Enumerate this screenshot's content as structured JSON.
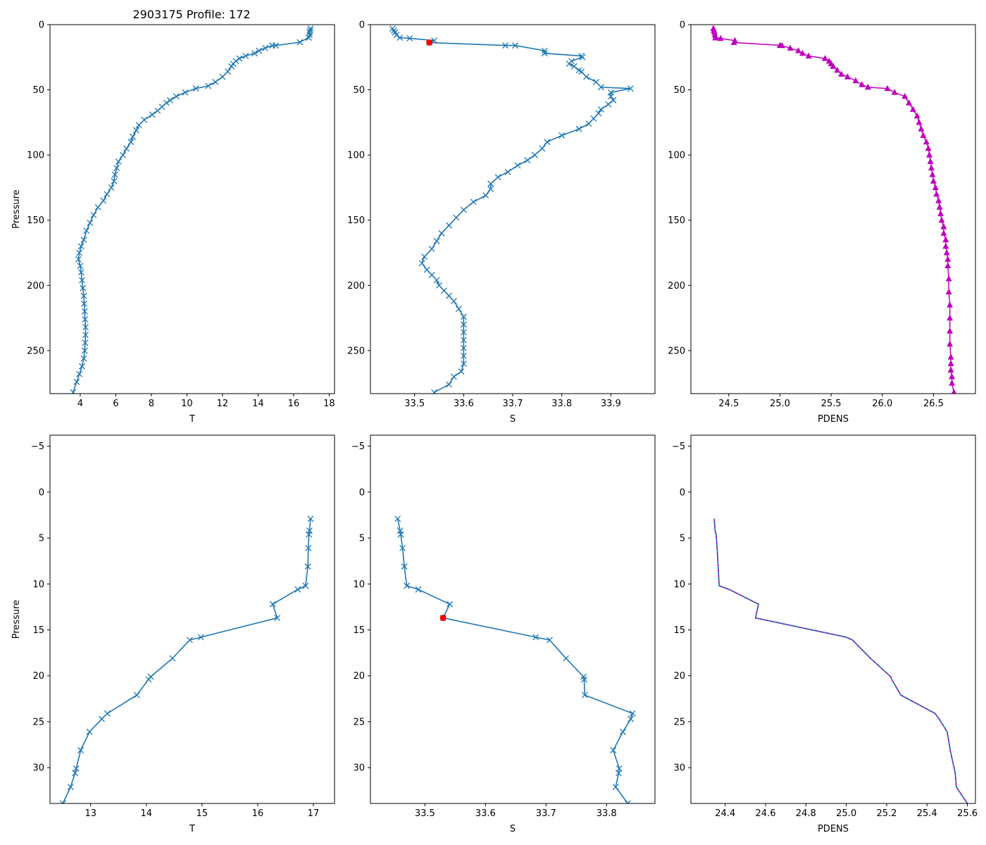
{
  "title": "2903175 Profile: 172",
  "colors": {
    "line": "#1f77b4",
    "density": "#bf00bf",
    "flag": "#ff0000"
  },
  "chart_data": [
    {
      "type": "line",
      "panel": "top-left",
      "xlabel": "T",
      "ylabel": "Pressure",
      "xlim": [
        2.3,
        18.3
      ],
      "ylim": [
        283,
        0
      ],
      "xticks": [
        4,
        6,
        8,
        10,
        12,
        14,
        16,
        18
      ],
      "yticks": [
        0,
        50,
        100,
        150,
        200,
        250
      ],
      "marker": "x",
      "series": [
        {
          "name": "T",
          "x": [
            16.95,
            16.93,
            16.9,
            16.9,
            16.85,
            16.35,
            15.0,
            14.8,
            14.4,
            14.05,
            13.8,
            13.3,
            12.95,
            12.75,
            12.6,
            12.5,
            12.3,
            12.0,
            11.6,
            11.2,
            10.5,
            9.9,
            9.4,
            9.05,
            8.85,
            8.6,
            8.35,
            8.05,
            7.6,
            7.3,
            7.15,
            6.95,
            6.85,
            6.6,
            6.4,
            6.15,
            6.05,
            5.95,
            5.9,
            5.75,
            5.5,
            5.3,
            5.0,
            4.75,
            4.55,
            4.35,
            4.2,
            4.05,
            3.95,
            3.9,
            4.0,
            4.05,
            4.1,
            4.15,
            4.2,
            4.22,
            4.25,
            4.27,
            4.3,
            4.3,
            4.28,
            4.25,
            4.2,
            4.1,
            3.95,
            3.8,
            3.6
          ],
          "y": [
            3,
            4.5,
            6,
            8,
            10,
            13.5,
            16,
            16,
            18,
            20,
            22,
            24,
            26,
            28,
            30,
            32,
            36,
            40,
            44,
            47,
            49,
            52,
            55,
            58,
            60,
            63,
            66,
            69,
            73,
            77,
            81,
            86,
            90,
            95,
            100,
            105,
            110,
            115,
            120,
            125,
            130,
            135,
            140,
            146,
            152,
            158,
            165,
            170,
            175,
            180,
            185,
            190,
            196,
            202,
            208,
            214,
            220,
            226,
            232,
            238,
            244,
            250,
            256,
            262,
            268,
            274,
            282
          ]
        }
      ]
    },
    {
      "type": "line",
      "panel": "top-middle",
      "xlabel": "S",
      "ylabel": "",
      "xlim": [
        33.41,
        33.99
      ],
      "ylim": [
        283,
        0
      ],
      "xticks": [
        33.5,
        33.6,
        33.7,
        33.8,
        33.9
      ],
      "yticks": [
        0,
        50,
        100,
        150,
        200,
        250
      ],
      "marker": "x",
      "series": [
        {
          "name": "S",
          "x": [
            33.455,
            33.458,
            33.46,
            33.463,
            33.47,
            33.49,
            33.54,
            33.53,
            33.685,
            33.705,
            33.765,
            33.765,
            33.84,
            33.842,
            33.82,
            33.815,
            33.825,
            33.835,
            33.84,
            33.85,
            33.87,
            33.88,
            33.94,
            33.9,
            33.9,
            33.905,
            33.895,
            33.88,
            33.875,
            33.865,
            33.855,
            33.835,
            33.8,
            33.77,
            33.76,
            33.745,
            33.73,
            33.71,
            33.69,
            33.67,
            33.655,
            33.655,
            33.645,
            33.62,
            33.6,
            33.585,
            33.57,
            33.555,
            33.545,
            33.535,
            33.52,
            33.515,
            33.525,
            33.535,
            33.545,
            33.55,
            33.56,
            33.57,
            33.58,
            33.59,
            33.6,
            33.6,
            33.6,
            33.6,
            33.6,
            33.6,
            33.6,
            33.595,
            33.58,
            33.57,
            33.54
          ],
          "y": [
            3,
            4.5,
            6,
            8,
            10,
            10.5,
            12.2,
            13.7,
            16,
            16,
            20,
            22,
            24,
            25,
            28,
            30,
            32,
            35,
            36,
            40,
            44,
            48,
            49,
            52,
            55,
            58,
            61,
            65,
            68,
            72,
            76,
            80,
            85,
            90,
            95,
            100,
            104,
            108,
            113,
            117,
            122,
            126,
            131,
            136,
            142,
            148,
            154,
            160,
            166,
            172,
            178,
            183,
            188,
            192,
            196,
            200,
            204,
            208,
            212,
            218,
            224,
            230,
            236,
            242,
            248,
            254,
            260,
            266,
            270,
            276,
            282
          ]
        }
      ],
      "flag": {
        "x": 33.53,
        "y": 13.7
      }
    },
    {
      "type": "line",
      "panel": "top-right",
      "xlabel": "PDENS",
      "ylabel": "",
      "xlim": [
        24.13,
        26.91
      ],
      "ylim": [
        283,
        0
      ],
      "xticks": [
        24.5,
        25.0,
        25.5,
        26.0,
        26.5
      ],
      "yticks": [
        0,
        50,
        100,
        150,
        200,
        250
      ],
      "marker": "triangle",
      "series": [
        {
          "name": "PDENS",
          "x": [
            24.35,
            24.355,
            24.36,
            24.365,
            24.37,
            24.37,
            24.42,
            24.56,
            24.55,
            25.0,
            25.02,
            25.1,
            25.18,
            25.22,
            25.28,
            25.44,
            25.48,
            25.5,
            25.52,
            25.56,
            25.6,
            25.66,
            25.74,
            25.8,
            25.86,
            26.05,
            26.12,
            26.22,
            26.26,
            26.3,
            26.34,
            26.36,
            26.38,
            26.4,
            26.43,
            26.45,
            26.46,
            26.47,
            26.48,
            26.49,
            26.5,
            26.52,
            26.53,
            26.55,
            26.56,
            26.57,
            26.58,
            26.6,
            26.6,
            26.62,
            26.62,
            26.63,
            26.64,
            26.64,
            26.65,
            26.65,
            26.66,
            26.66,
            26.66,
            26.66,
            26.67,
            26.67,
            26.67,
            26.68,
            26.68,
            26.7
          ],
          "y": [
            3,
            4.5,
            6,
            8,
            10,
            10.2,
            10.6,
            12.2,
            13.7,
            15.9,
            16.1,
            18,
            20,
            22,
            24,
            26,
            28,
            30,
            32,
            35,
            38,
            40,
            43,
            46,
            48,
            49,
            52,
            55,
            60,
            65,
            70,
            75,
            80,
            85,
            90,
            95,
            100,
            105,
            110,
            115,
            120,
            125,
            130,
            135,
            140,
            145,
            150,
            155,
            160,
            165,
            170,
            175,
            180,
            185,
            195,
            205,
            215,
            225,
            235,
            245,
            255,
            260,
            265,
            270,
            275,
            282
          ]
        }
      ]
    },
    {
      "type": "line",
      "panel": "bottom-left",
      "xlabel": "T",
      "ylabel": "Pressure",
      "xlim": [
        12.27,
        17.38
      ],
      "ylim": [
        33.9,
        -6.2
      ],
      "xticks": [
        13,
        14,
        15,
        16,
        17
      ],
      "yticks": [
        -5,
        0,
        5,
        10,
        15,
        20,
        25,
        30
      ],
      "marker": "x",
      "series": [
        {
          "name": "T",
          "x": [
            16.95,
            16.93,
            16.92,
            16.91,
            16.9,
            16.86,
            16.72,
            16.27,
            16.35,
            14.98,
            14.78,
            14.47,
            14.08,
            14.04,
            13.83,
            13.3,
            13.2,
            12.98,
            12.82,
            12.74,
            12.72,
            12.64,
            12.5
          ],
          "y": [
            2.9,
            4.2,
            4.6,
            6.1,
            8.1,
            10.2,
            10.6,
            12.2,
            13.7,
            15.8,
            16.1,
            18.1,
            20.1,
            20.4,
            22.1,
            24.1,
            24.7,
            26.1,
            28.1,
            30.1,
            30.6,
            32.1,
            33.9
          ]
        }
      ]
    },
    {
      "type": "line",
      "panel": "bottom-middle",
      "xlabel": "S",
      "ylabel": "",
      "xlim": [
        33.41,
        33.88
      ],
      "ylim": [
        33.9,
        -6.2
      ],
      "xticks": [
        33.5,
        33.6,
        33.7,
        33.8
      ],
      "yticks": [
        -5,
        0,
        5,
        10,
        15,
        20,
        25,
        30
      ],
      "marker": "x",
      "series": [
        {
          "name": "S",
          "x": [
            33.455,
            33.459,
            33.46,
            33.463,
            33.466,
            33.47,
            33.489,
            33.541,
            33.53,
            33.683,
            33.706,
            33.733,
            33.762,
            33.763,
            33.764,
            33.843,
            33.84,
            33.827,
            33.811,
            33.821,
            33.82,
            33.815,
            33.835
          ],
          "y": [
            2.9,
            4.2,
            4.6,
            6.1,
            8.1,
            10.2,
            10.6,
            12.2,
            13.7,
            15.8,
            16.1,
            18.1,
            20.1,
            20.4,
            22.1,
            24.1,
            24.7,
            26.1,
            28.1,
            30.1,
            30.6,
            32.1,
            33.9
          ]
        }
      ],
      "flag": {
        "x": 33.53,
        "y": 13.7
      }
    },
    {
      "type": "line",
      "panel": "bottom-right",
      "xlabel": "PDENS",
      "ylabel": "",
      "xlim": [
        24.23,
        25.64
      ],
      "ylim": [
        33.9,
        -6.2
      ],
      "xticks": [
        24.4,
        24.6,
        24.8,
        25.0,
        25.2,
        25.4,
        25.6
      ],
      "yticks": [
        -5,
        0,
        5,
        10,
        15,
        20,
        25,
        30
      ],
      "marker": "none",
      "series": [
        {
          "name": "PDENS",
          "x": [
            24.345,
            24.35,
            24.355,
            24.36,
            24.365,
            24.37,
            24.42,
            24.565,
            24.55,
            25.0,
            25.03,
            25.12,
            25.22,
            25.225,
            25.27,
            25.44,
            25.46,
            25.5,
            25.515,
            25.535,
            25.54,
            25.545,
            25.6
          ],
          "y": [
            2.9,
            4.2,
            4.6,
            6.1,
            8.1,
            10.2,
            10.6,
            12.2,
            13.7,
            15.8,
            16.1,
            18.1,
            20.1,
            20.4,
            22.1,
            24.1,
            24.7,
            26.1,
            28.1,
            30.1,
            30.6,
            32.1,
            33.9
          ]
        }
      ]
    }
  ]
}
